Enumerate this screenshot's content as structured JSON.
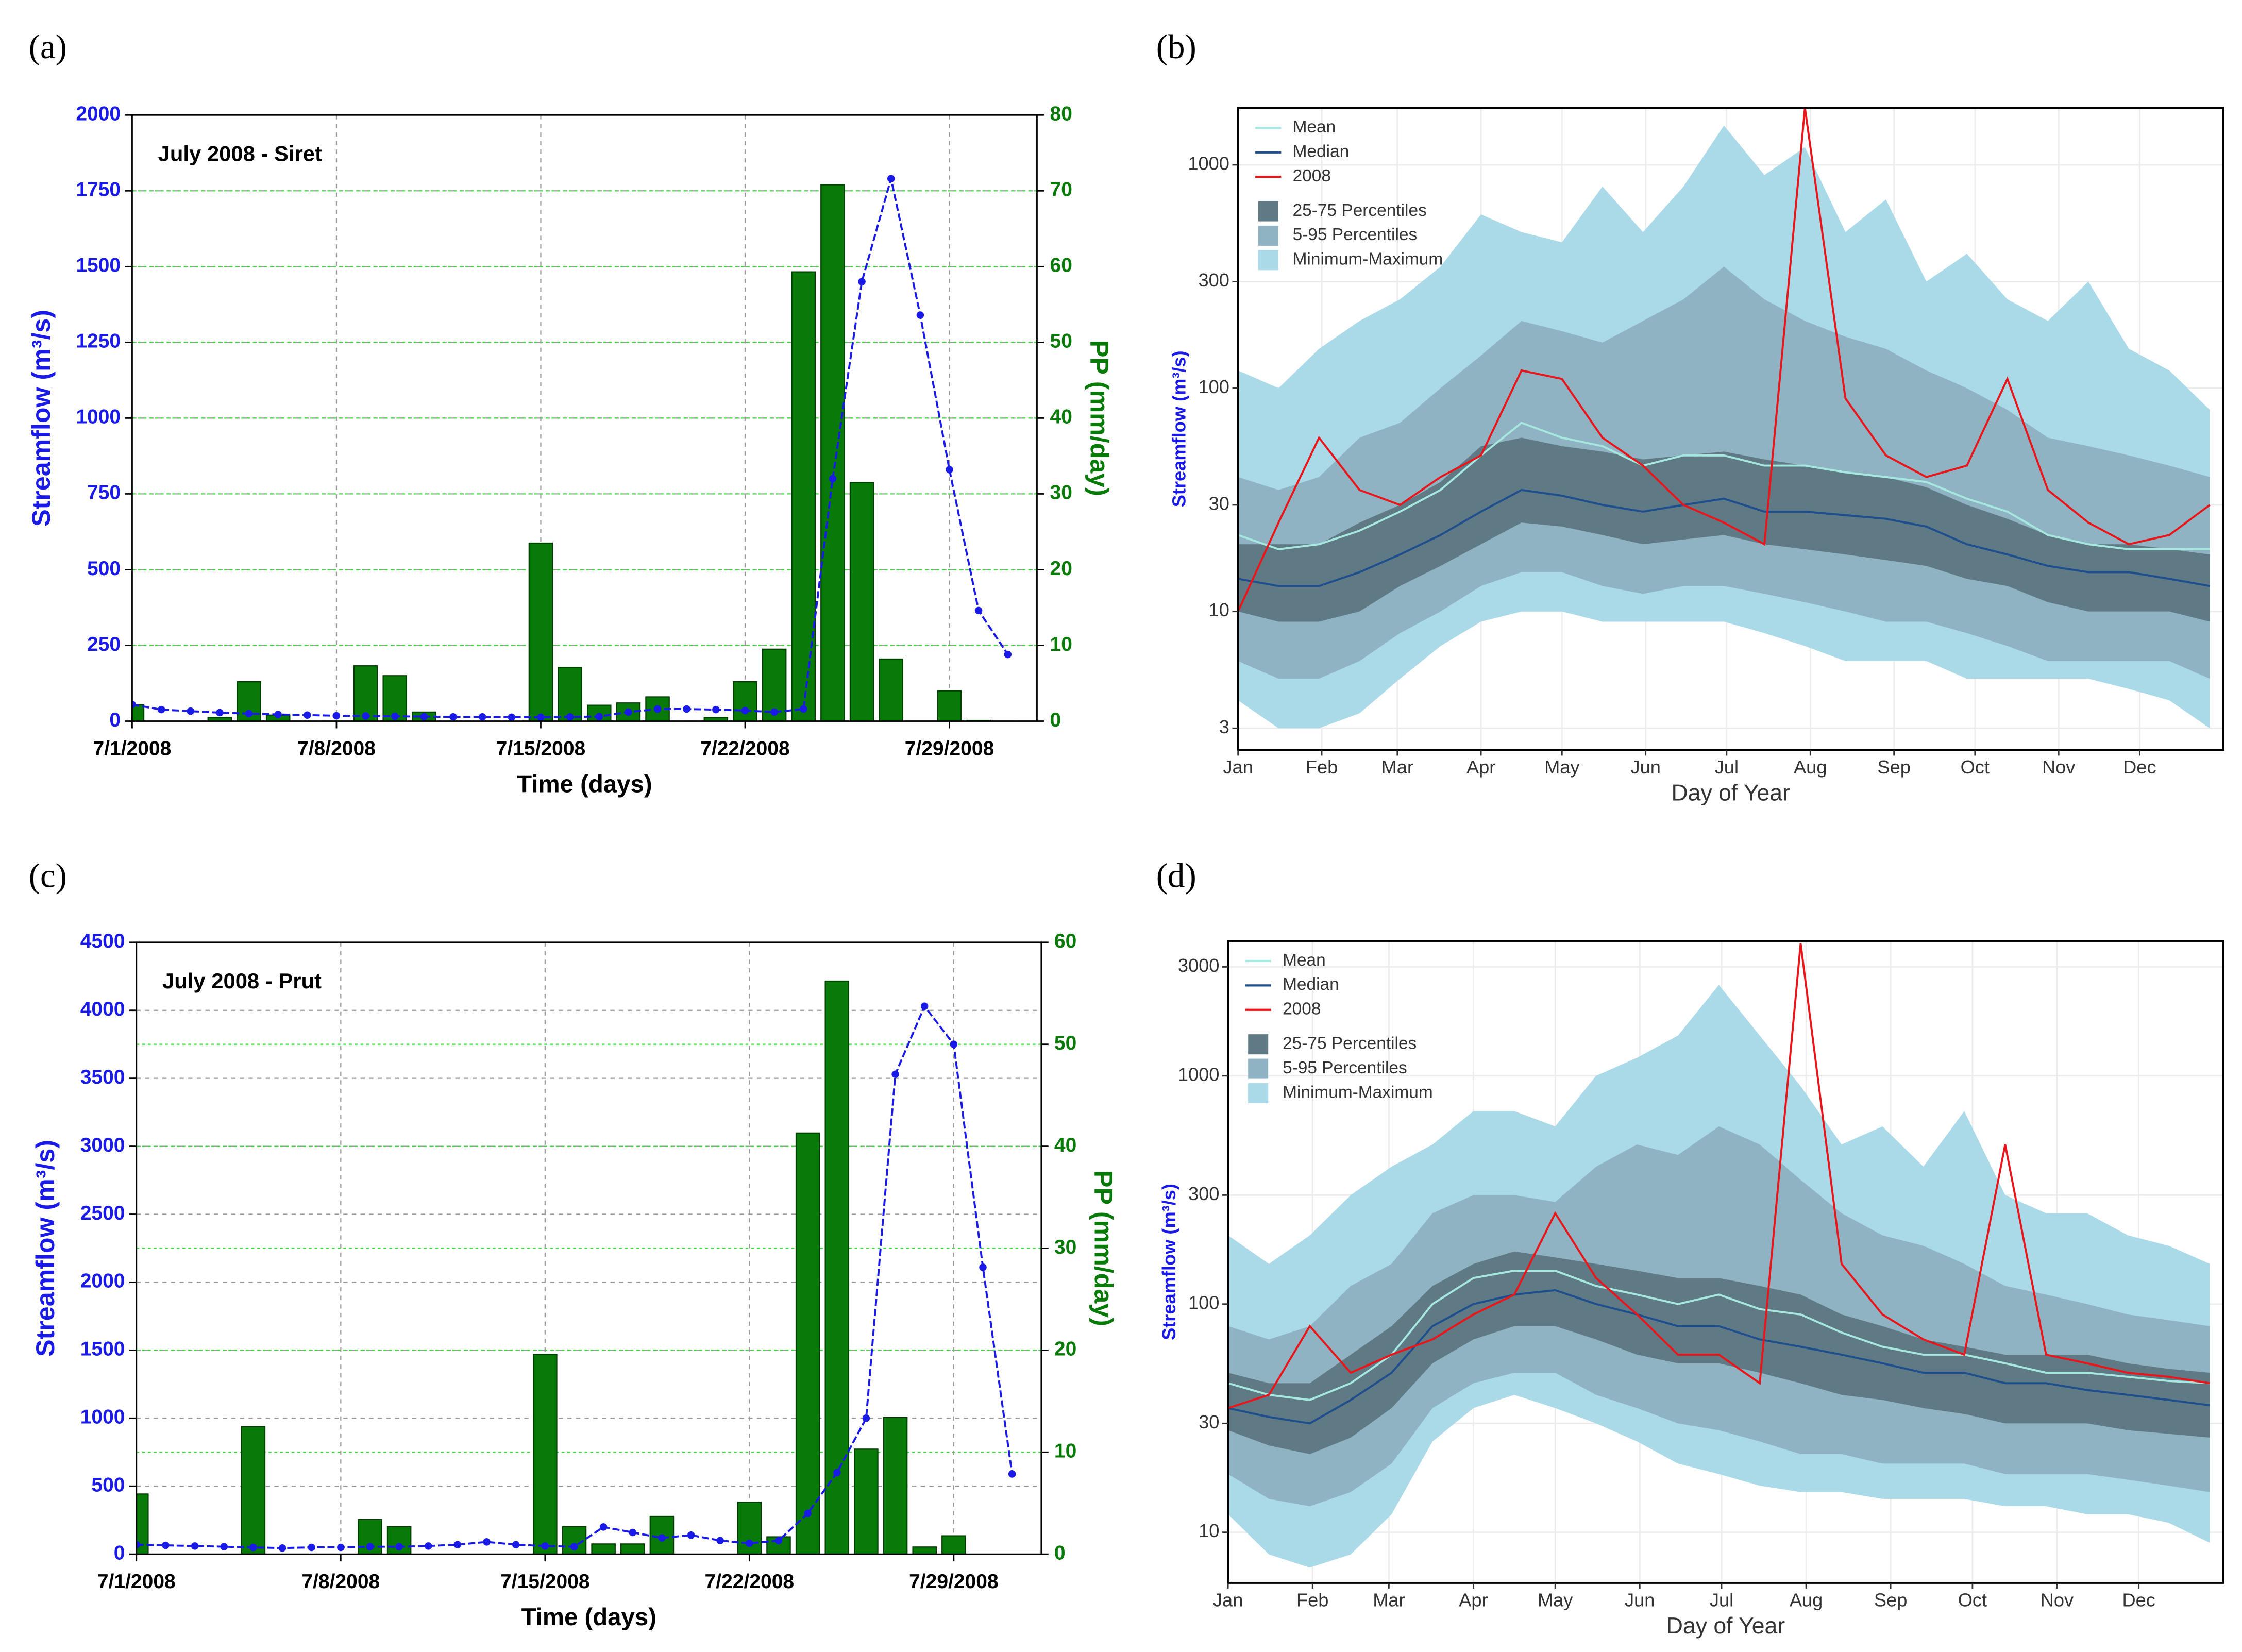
{
  "chart_data": [
    {
      "type": "bar-line",
      "label": "(a)",
      "title": "July 2008 - Siret",
      "xlabel": "Time (days)",
      "ylabel": "Streamflow (m³/s)",
      "y2label": "PP (mm/day)",
      "x": [
        1,
        2,
        3,
        4,
        5,
        6,
        7,
        8,
        9,
        10,
        11,
        12,
        13,
        14,
        15,
        16,
        17,
        18,
        19,
        20,
        21,
        22,
        23,
        24,
        25,
        26,
        27,
        28,
        29,
        30,
        31
      ],
      "xlim": [
        1,
        32
      ],
      "xticks": [
        {
          "value": 1,
          "label": "7/1/2008"
        },
        {
          "value": 8,
          "label": "7/8/2008"
        },
        {
          "value": 15,
          "label": "7/15/2008"
        },
        {
          "value": 22,
          "label": "7/22/2008"
        },
        {
          "value": 29,
          "label": "7/29/2008"
        }
      ],
      "ylim": [
        0,
        2000
      ],
      "yticks": [
        0,
        250,
        500,
        750,
        1000,
        1250,
        1500,
        1750,
        2000
      ],
      "y2lim": [
        0,
        80
      ],
      "y2ticks": [
        0,
        10,
        20,
        30,
        40,
        50,
        60,
        70,
        80
      ],
      "grid": true,
      "series": [
        {
          "color": "#1a1ae6",
          "values": [
            55,
            38,
            33,
            28,
            25,
            22,
            20,
            18,
            17,
            16,
            15,
            14,
            14,
            13,
            13,
            14,
            15,
            30,
            40,
            40,
            38,
            35,
            30,
            40,
            800,
            1450,
            1790,
            1340,
            830,
            365,
            220
          ]
        },
        {
          "axis": "y2",
          "color": "#087a08",
          "values": [
            2.2,
            0,
            0,
            0.5,
            5.2,
            0.8,
            0,
            0,
            7.3,
            6,
            1.2,
            0,
            0,
            0,
            23.5,
            7.1,
            2.1,
            2.4,
            3.2,
            0,
            0.5,
            5.2,
            9.5,
            59.3,
            70.8,
            31.5,
            8.2,
            0,
            4,
            0.1,
            0
          ]
        }
      ]
    },
    {
      "type": "band-line",
      "label": "(b)",
      "xlabel": "Day of Year",
      "ylabel": "Streamflow (m³/s)",
      "log_y": true,
      "grid": true,
      "x": [
        1,
        16,
        31,
        46,
        61,
        76,
        91,
        106,
        121,
        136,
        151,
        166,
        181,
        196,
        211,
        226,
        241,
        256,
        271,
        286,
        301,
        316,
        331,
        346,
        361
      ],
      "xlim": [
        1,
        366
      ],
      "xticks": [
        {
          "value": 1,
          "label": "Jan"
        },
        {
          "value": 32,
          "label": "Feb"
        },
        {
          "value": 60,
          "label": "Mar"
        },
        {
          "value": 91,
          "label": "Apr"
        },
        {
          "value": 121,
          "label": "May"
        },
        {
          "value": 152,
          "label": "Jun"
        },
        {
          "value": 182,
          "label": "Jul"
        },
        {
          "value": 213,
          "label": "Aug"
        },
        {
          "value": 244,
          "label": "Sep"
        },
        {
          "value": 274,
          "label": "Oct"
        },
        {
          "value": 305,
          "label": "Nov"
        },
        {
          "value": 335,
          "label": "Dec"
        }
      ],
      "ylim": [
        2.4,
        1800
      ],
      "yticks": [
        3,
        10,
        30,
        100,
        300,
        1000
      ],
      "bands": [
        {
          "name": "25-75 Percentiles",
          "color": "#5f7a85",
          "lower": [
            10,
            9,
            9,
            10,
            13,
            16,
            20,
            25,
            24,
            22,
            20,
            21,
            22,
            20,
            19,
            18,
            17,
            16,
            14,
            13,
            11,
            10,
            10,
            10,
            9
          ],
          "upper": [
            20,
            20,
            20,
            25,
            30,
            38,
            55,
            60,
            55,
            52,
            48,
            50,
            52,
            48,
            45,
            42,
            40,
            36,
            30,
            26,
            22,
            20,
            20,
            19,
            18
          ]
        },
        {
          "name": "5-95 Percentiles",
          "color": "#8fb3c2",
          "lower": [
            6,
            5,
            5,
            6,
            8,
            10,
            13,
            15,
            15,
            13,
            12,
            13,
            13,
            12,
            11,
            10,
            9,
            9,
            8,
            7,
            6,
            6,
            6,
            6,
            5
          ],
          "upper": [
            40,
            35,
            40,
            60,
            70,
            100,
            140,
            200,
            180,
            160,
            200,
            250,
            350,
            250,
            200,
            170,
            150,
            120,
            100,
            80,
            60,
            55,
            50,
            45,
            40
          ]
        },
        {
          "name": "Minimum-Maximum",
          "color": "#aad9e8",
          "lower": [
            4,
            3,
            3,
            3.5,
            5,
            7,
            9,
            10,
            10,
            9,
            9,
            9,
            9,
            8,
            7,
            6,
            6,
            6,
            5,
            5,
            5,
            5,
            4.5,
            4,
            3
          ],
          "upper": [
            120,
            100,
            150,
            200,
            250,
            350,
            600,
            500,
            450,
            800,
            500,
            800,
            1500,
            900,
            1200,
            500,
            700,
            300,
            400,
            250,
            200,
            300,
            150,
            120,
            80
          ]
        }
      ],
      "series": [
        {
          "name": "Mean",
          "color": "#a6e8df",
          "values": [
            22,
            19,
            20,
            23,
            28,
            35,
            50,
            70,
            60,
            55,
            45,
            50,
            50,
            45,
            45,
            42,
            40,
            38,
            32,
            28,
            22,
            20,
            19,
            19,
            19
          ]
        },
        {
          "name": "Median",
          "color": "#1f4e8c",
          "values": [
            14,
            13,
            13,
            15,
            18,
            22,
            28,
            35,
            33,
            30,
            28,
            30,
            32,
            28,
            28,
            27,
            26,
            24,
            20,
            18,
            16,
            15,
            15,
            14,
            13
          ]
        },
        {
          "name": "2008",
          "color": "#e8161b",
          "values": [
            10,
            25,
            60,
            35,
            30,
            40,
            50,
            120,
            110,
            60,
            45,
            30,
            25,
            20,
            1800,
            90,
            50,
            40,
            45,
            110,
            35,
            25,
            20,
            22,
            30
          ]
        }
      ]
    },
    {
      "type": "bar-line",
      "label": "(c)",
      "title": "July 2008 - Prut",
      "xlabel": "Time (days)",
      "ylabel": "Streamflow (m³/s)",
      "y2label": "PP (mm/day)",
      "x": [
        1,
        2,
        3,
        4,
        5,
        6,
        7,
        8,
        9,
        10,
        11,
        12,
        13,
        14,
        15,
        16,
        17,
        18,
        19,
        20,
        21,
        22,
        23,
        24,
        25,
        26,
        27,
        28,
        29,
        30,
        31
      ],
      "xlim": [
        1,
        32
      ],
      "xticks": [
        {
          "value": 1,
          "label": "7/1/2008"
        },
        {
          "value": 8,
          "label": "7/8/2008"
        },
        {
          "value": 15,
          "label": "7/15/2008"
        },
        {
          "value": 22,
          "label": "7/22/2008"
        },
        {
          "value": 29,
          "label": "7/29/2008"
        }
      ],
      "ylim": [
        0,
        4500
      ],
      "yticks": [
        0,
        500,
        1000,
        1500,
        2000,
        2500,
        3000,
        3500,
        4000,
        4500
      ],
      "y2lim": [
        0,
        60
      ],
      "y2ticks": [
        0,
        10,
        20,
        30,
        40,
        50,
        60
      ],
      "grid": true,
      "series": [
        {
          "color": "#1a1ae6",
          "values": [
            70,
            65,
            60,
            55,
            50,
            45,
            50,
            50,
            55,
            55,
            60,
            70,
            90,
            70,
            60,
            55,
            200,
            160,
            120,
            140,
            100,
            80,
            100,
            300,
            600,
            1000,
            3530,
            4030,
            3750,
            2110,
            590
          ]
        },
        {
          "axis": "y2",
          "color": "#087a08",
          "values": [
            5.9,
            0,
            0,
            0,
            12.5,
            0,
            0,
            0,
            3.4,
            2.7,
            0,
            0,
            0,
            0,
            19.6,
            2.7,
            1,
            1,
            3.7,
            0,
            0,
            5.1,
            1.7,
            41.3,
            56.2,
            10.3,
            13.4,
            0.7,
            1.8,
            0,
            0
          ]
        }
      ]
    },
    {
      "type": "band-line",
      "label": "(d)",
      "xlabel": "Day of Year",
      "ylabel": "Streamflow (m³/s)",
      "log_y": true,
      "grid": true,
      "x": [
        1,
        16,
        31,
        46,
        61,
        76,
        91,
        106,
        121,
        136,
        151,
        166,
        181,
        196,
        211,
        226,
        241,
        256,
        271,
        286,
        301,
        316,
        331,
        346,
        361
      ],
      "xlim": [
        1,
        366
      ],
      "xticks": [
        {
          "value": 1,
          "label": "Jan"
        },
        {
          "value": 32,
          "label": "Feb"
        },
        {
          "value": 60,
          "label": "Mar"
        },
        {
          "value": 91,
          "label": "Apr"
        },
        {
          "value": 121,
          "label": "May"
        },
        {
          "value": 152,
          "label": "Jun"
        },
        {
          "value": 182,
          "label": "Jul"
        },
        {
          "value": 213,
          "label": "Aug"
        },
        {
          "value": 244,
          "label": "Sep"
        },
        {
          "value": 274,
          "label": "Oct"
        },
        {
          "value": 305,
          "label": "Nov"
        },
        {
          "value": 335,
          "label": "Dec"
        }
      ],
      "ylim": [
        6,
        3900
      ],
      "yticks": [
        10,
        30,
        100,
        300,
        1000,
        3000
      ],
      "bands": [
        {
          "name": "25-75 Percentiles",
          "color": "#5f7a85",
          "lower": [
            28,
            24,
            22,
            26,
            35,
            55,
            70,
            80,
            80,
            70,
            60,
            55,
            55,
            50,
            45,
            40,
            38,
            35,
            33,
            30,
            30,
            30,
            28,
            27,
            26
          ],
          "upper": [
            50,
            45,
            45,
            60,
            80,
            120,
            150,
            170,
            160,
            150,
            140,
            130,
            130,
            120,
            110,
            90,
            80,
            70,
            65,
            60,
            60,
            60,
            55,
            52,
            50
          ]
        },
        {
          "name": "5-95 Percentiles",
          "color": "#8fb3c2",
          "lower": [
            18,
            14,
            13,
            15,
            20,
            35,
            45,
            50,
            50,
            40,
            35,
            30,
            28,
            25,
            22,
            22,
            20,
            20,
            20,
            18,
            18,
            18,
            17,
            16,
            15
          ],
          "upper": [
            80,
            70,
            80,
            120,
            150,
            250,
            300,
            300,
            280,
            400,
            500,
            450,
            600,
            500,
            350,
            250,
            200,
            180,
            150,
            120,
            110,
            100,
            90,
            85,
            80
          ]
        },
        {
          "name": "Minimum-Maximum",
          "color": "#aad9e8",
          "lower": [
            12,
            8,
            7,
            8,
            12,
            25,
            35,
            40,
            35,
            30,
            25,
            20,
            18,
            16,
            15,
            15,
            14,
            14,
            14,
            13,
            13,
            12,
            12,
            11,
            9
          ],
          "upper": [
            200,
            150,
            200,
            300,
            400,
            500,
            700,
            700,
            600,
            1000,
            1200,
            1500,
            2500,
            1500,
            900,
            500,
            600,
            400,
            700,
            300,
            250,
            250,
            200,
            180,
            150
          ]
        }
      ],
      "series": [
        {
          "name": "Mean",
          "color": "#a6e8df",
          "values": [
            45,
            40,
            38,
            45,
            60,
            100,
            130,
            140,
            140,
            120,
            110,
            100,
            110,
            95,
            90,
            75,
            65,
            60,
            60,
            55,
            50,
            50,
            48,
            46,
            45
          ]
        },
        {
          "name": "Median",
          "color": "#1f4e8c",
          "values": [
            35,
            32,
            30,
            38,
            50,
            80,
            100,
            110,
            115,
            100,
            90,
            80,
            80,
            70,
            65,
            60,
            55,
            50,
            50,
            45,
            45,
            42,
            40,
            38,
            36
          ]
        },
        {
          "name": "2008",
          "color": "#e8161b",
          "values": [
            35,
            40,
            80,
            50,
            60,
            70,
            90,
            110,
            250,
            130,
            90,
            60,
            60,
            45,
            3800,
            150,
            90,
            70,
            60,
            500,
            60,
            55,
            50,
            48,
            45
          ]
        }
      ]
    }
  ]
}
